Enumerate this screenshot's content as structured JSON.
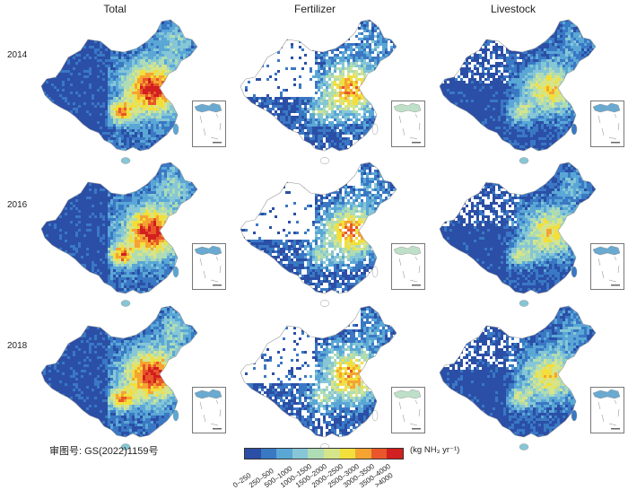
{
  "columns": [
    "Total",
    "Fertilizer",
    "Livestock"
  ],
  "rows": [
    "2014",
    "2016",
    "2018"
  ],
  "review_number": "审图号: GS(2022)1159号",
  "legend": {
    "unit": "(kg NH₃ yr⁻¹)",
    "classes": [
      "0–250",
      "250–500",
      "500–1000",
      "1000–1500",
      "1500–2000",
      "2000–2500",
      "2500–3000",
      "3000–3500",
      "3500–4000",
      ">4000"
    ],
    "colors": [
      "#2b4fa6",
      "#3a78c4",
      "#5aa7d6",
      "#86c6d6",
      "#aedcb4",
      "#d6e48a",
      "#f2df3c",
      "#f5a431",
      "#e8562a",
      "#d21f1f"
    ]
  }
}
